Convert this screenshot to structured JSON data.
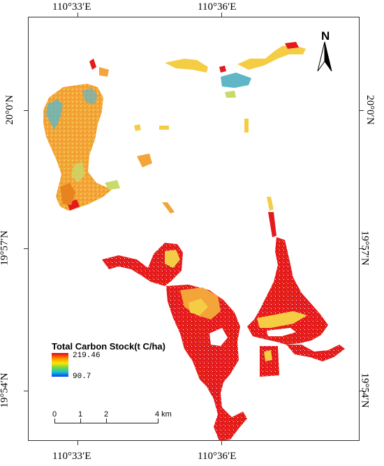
{
  "map": {
    "top_labels": [
      "110°33′E",
      "110°36′E"
    ],
    "bottom_labels": [
      "110°33′E",
      "110°36′E"
    ],
    "left_labels": [
      "20°0′N",
      "19°57′N",
      "19°54′N"
    ],
    "right_labels": [
      "20°0′N",
      "19°57′N",
      "19°54′N"
    ]
  },
  "north_arrow": {
    "letter": "N",
    "icon": "north-arrow-icon"
  },
  "legend": {
    "title": "Total Carbon Stock(t C/ha)",
    "max": "219.46",
    "min": "90.7",
    "colors": [
      "#e8001a",
      "#ff8a00",
      "#ffe600",
      "#6fd64a",
      "#19c4c9",
      "#0a3cff"
    ]
  },
  "scale_bar": {
    "labels": [
      "0",
      "1",
      "2",
      "4 km"
    ]
  },
  "colors": {
    "high": "#e41a1c",
    "mid_high": "#f7a23a",
    "mid": "#f5cd45",
    "low_mid": "#c9d96a",
    "low": "#5fb6c6"
  }
}
